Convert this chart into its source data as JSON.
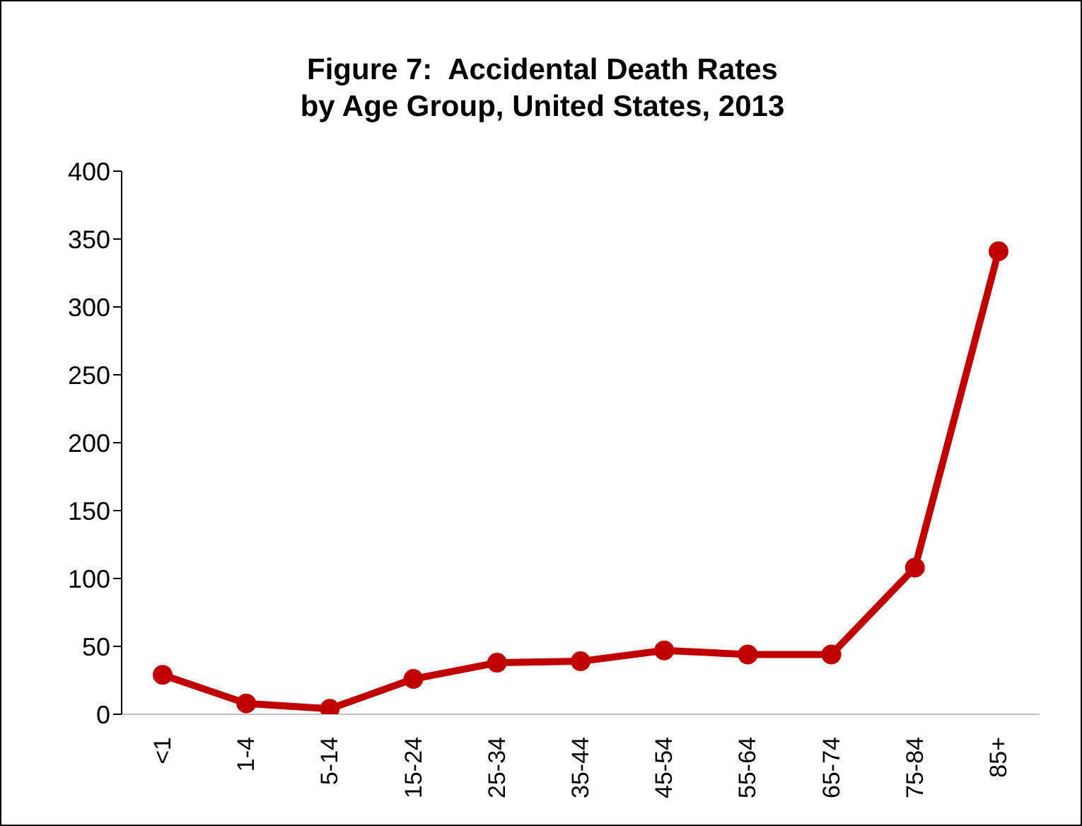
{
  "chart_data": {
    "type": "line",
    "title": "Figure 7:  Accidental Death Rates\nby Age Group, United States, 2013",
    "categories": [
      "<1",
      "1-4",
      "5-14",
      "15-24",
      "25-34",
      "35-44",
      "45-54",
      "55-64",
      "65-74",
      "75-84",
      "85+"
    ],
    "series": [
      {
        "color": "#c00000",
        "values": [
          29,
          8,
          4,
          26,
          38,
          39,
          47,
          44,
          44,
          108,
          341
        ]
      }
    ],
    "ylim": [
      0,
      400
    ],
    "yticks": [
      0,
      50,
      100,
      150,
      200,
      250,
      300,
      350,
      400
    ],
    "marker": "circle",
    "line_style": "solid"
  }
}
